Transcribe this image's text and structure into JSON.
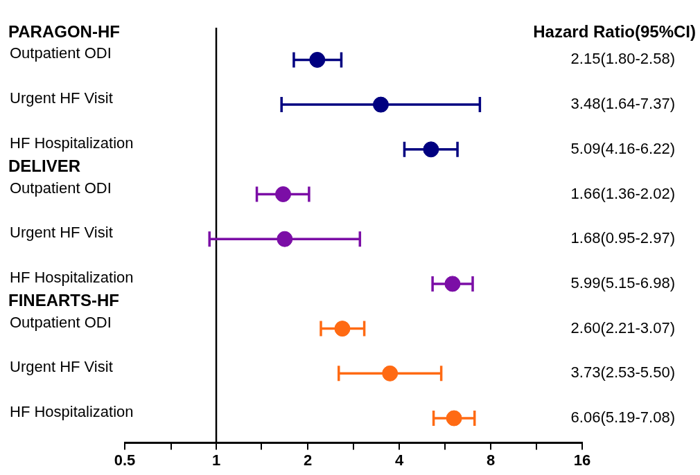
{
  "chart_data": {
    "type": "scatter",
    "orientation": "horizontal",
    "categories": [
      "Outpatient ODI",
      "Urgent HF Visit",
      "HF Hospitalization",
      "Outpatient ODI",
      "Urgent HF Visit",
      "HF Hospitalization",
      "Outpatient ODI",
      "Urgent HF Visit",
      "HF Hospitalization"
    ],
    "series": [
      {
        "colors": [
          "#000080",
          "#000080",
          "#000080",
          "#7b0ea6",
          "#7b0ea6",
          "#7b0ea6",
          "#ff6a13",
          "#ff6a13",
          "#ff6a13"
        ],
        "values": [
          2.15,
          3.48,
          5.09,
          1.66,
          1.68,
          5.99,
          2.6,
          3.73,
          6.06
        ],
        "errors": [
          [
            1.8,
            2.58
          ],
          [
            1.64,
            7.37
          ],
          [
            4.16,
            6.22
          ],
          [
            1.36,
            2.02
          ],
          [
            0.95,
            2.97
          ],
          [
            5.15,
            6.98
          ],
          [
            2.21,
            3.07
          ],
          [
            2.53,
            5.5
          ],
          [
            5.19,
            7.08
          ]
        ],
        "value_labels": [
          "2.15(1.80-2.58)",
          "3.48(1.64-7.37)",
          "5.09(4.16-6.22)",
          "1.66(1.36-2.02)",
          "1.68(0.95-2.97)",
          "5.99(5.15-6.98)",
          "2.60(2.21-3.07)",
          "3.73(2.53-5.50)",
          "6.06(5.19-7.08)"
        ]
      }
    ],
    "xlim": [
      0.5,
      16
    ],
    "xticks": [
      0.5,
      {
        "value": 0.71,
        "label": null
      },
      1,
      {
        "value": 1.41,
        "label": null
      },
      2,
      {
        "value": 2.83,
        "label": null
      },
      4,
      {
        "value": 5.66,
        "label": null
      },
      8,
      {
        "value": 11.31,
        "label": null
      },
      16
    ],
    "log": "x",
    "grid": false,
    "legend": false,
    "marker": "circle",
    "ref_lines": [
      {
        "axis": "x",
        "value": 1,
        "color": "#000000"
      }
    ],
    "annotations": [
      "Hazard Ratio(95%CI)",
      "PARAGON-HF",
      "DELIVER",
      "FINEARTS-HF"
    ]
  }
}
